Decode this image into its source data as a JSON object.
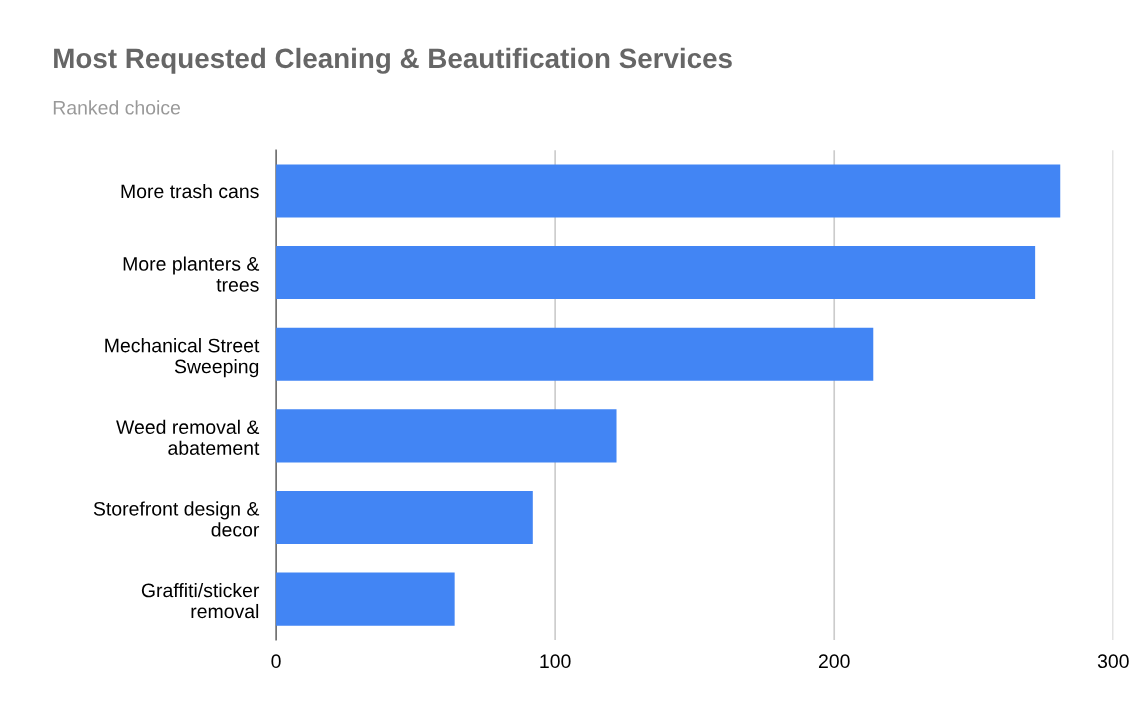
{
  "chart_data": {
    "type": "bar",
    "orientation": "horizontal",
    "title": "Most Requested Cleaning & Beautification Services",
    "subtitle": "Ranked choice",
    "categories": [
      "More trash cans",
      "More planters &\ntrees",
      "Mechanical Street\nSweeping",
      "Weed removal &\nabatement",
      "Storefront design &\ndecor",
      "Graffiti/sticker\nremoval"
    ],
    "values": [
      281,
      272,
      214,
      122,
      92,
      64
    ],
    "color": "#4285f4",
    "xlim": [
      0,
      300
    ],
    "xticks": [
      0,
      100,
      200,
      300
    ],
    "grid": "x"
  }
}
